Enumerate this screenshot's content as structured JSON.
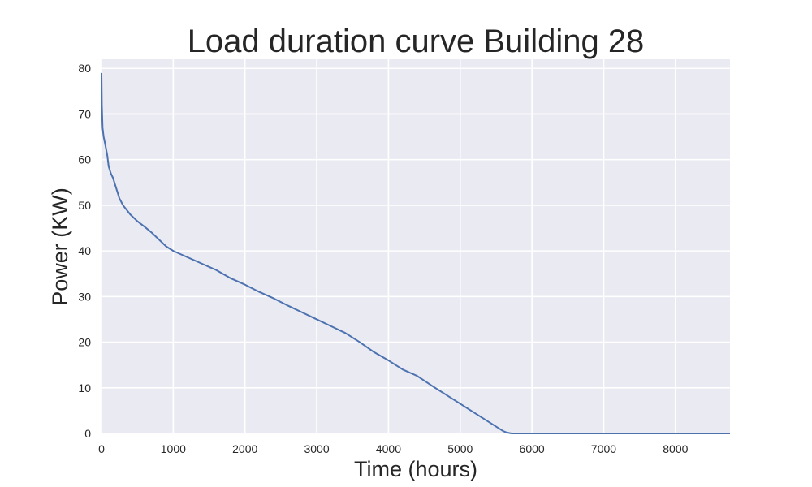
{
  "chart_data": {
    "type": "line",
    "title": "Load duration curve Building 28",
    "xlabel": "Time (hours)",
    "ylabel": "Power (KW)",
    "xlim": [
      0,
      8760
    ],
    "ylim": [
      0,
      82
    ],
    "x_ticks": [
      0,
      1000,
      2000,
      3000,
      4000,
      5000,
      6000,
      7000,
      8000
    ],
    "y_ticks": [
      0,
      10,
      20,
      30,
      40,
      50,
      60,
      70,
      80
    ],
    "grid": true,
    "legend": "none",
    "series": [
      {
        "color": "#4c72b0",
        "x": [
          0,
          5,
          15,
          30,
          50,
          80,
          100,
          130,
          160,
          200,
          250,
          300,
          350,
          400,
          500,
          600,
          700,
          800,
          900,
          1000,
          1200,
          1400,
          1600,
          1800,
          2000,
          2200,
          2400,
          2600,
          2800,
          3000,
          3200,
          3400,
          3600,
          3800,
          4000,
          4200,
          4400,
          4600,
          4800,
          5000,
          5200,
          5400,
          5500,
          5600,
          5650,
          5700,
          5720,
          8760
        ],
        "y": [
          79,
          72,
          67,
          65,
          63.5,
          61,
          58.5,
          57,
          56,
          54,
          51.5,
          50,
          49,
          48,
          46.5,
          45.3,
          44,
          42.5,
          41,
          40,
          38.6,
          37.2,
          35.8,
          34,
          32.6,
          31,
          29.6,
          28,
          26.5,
          25,
          23.5,
          22,
          20,
          17.8,
          16,
          14,
          12.6,
          10.5,
          8.5,
          6.5,
          4.5,
          2.5,
          1.5,
          0.5,
          0.2,
          0.05,
          0,
          0
        ]
      }
    ]
  }
}
